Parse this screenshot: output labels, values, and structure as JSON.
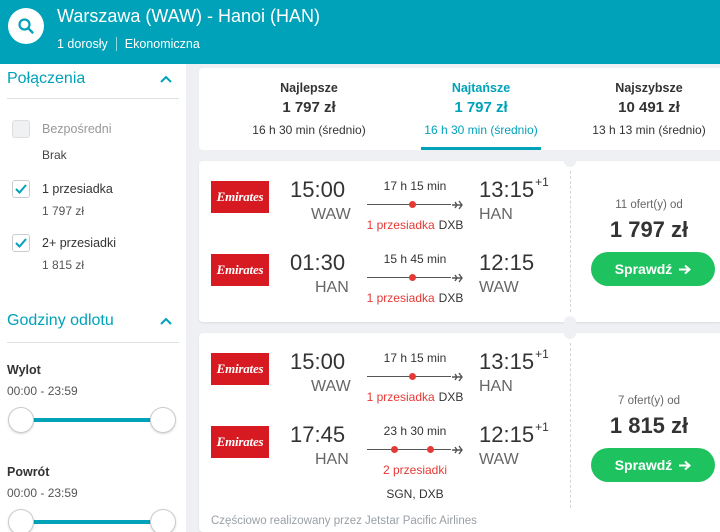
{
  "header": {
    "route": "Warszawa (WAW) - Hanoi (HAN)",
    "passengers": "1 dorosły",
    "cabin": "Ekonomiczna",
    "search_icon": "search-icon",
    "accent_color": "#00a2b9"
  },
  "sidebar": {
    "connections": {
      "title": "Połączenia",
      "options": [
        {
          "label": "Bezpośredni",
          "price": "Brak",
          "checked": false,
          "disabled": true
        },
        {
          "label": "1 przesiadka",
          "price": "1 797 zł",
          "checked": true,
          "disabled": false
        },
        {
          "label": "2+ przesiadki",
          "price": "1 815 zł",
          "checked": true,
          "disabled": false
        }
      ]
    },
    "departure_times": {
      "title": "Godziny odlotu",
      "outbound": {
        "label": "Wylot",
        "range": "00:00 - 23:59"
      },
      "return": {
        "label": "Powrót",
        "range": "00:00 - 23:59"
      }
    }
  },
  "sort_tabs": [
    {
      "label": "Najlepsze",
      "price": "1 797 zł",
      "duration": "16 h 30 min (średnio)",
      "active": false
    },
    {
      "label": "Najtańsze",
      "price": "1 797 zł",
      "duration": "16 h 30 min (średnio)",
      "active": true
    },
    {
      "label": "Najszybsze",
      "price": "10 491 zł",
      "duration": "13 h 13 min (średnio)",
      "active": false
    }
  ],
  "results": [
    {
      "legs": [
        {
          "airline": "Emirates",
          "dep_time": "15:00",
          "dep_code": "WAW",
          "duration": "17 h 15 min",
          "stops": "1 przesiadka",
          "via": "DXB",
          "arr_time": "13:15",
          "arr_day": "+1",
          "arr_code": "HAN"
        },
        {
          "airline": "Emirates",
          "dep_time": "01:30",
          "dep_code": "HAN",
          "duration": "15 h 45 min",
          "stops": "1 przesiadka",
          "via": "DXB",
          "arr_time": "12:15",
          "arr_day": "",
          "arr_code": "WAW"
        }
      ],
      "offers": "11 ofert(y) od",
      "price": "1 797 zł",
      "button": "Sprawdź"
    },
    {
      "legs": [
        {
          "airline": "Emirates",
          "dep_time": "15:00",
          "dep_code": "WAW",
          "duration": "17 h 15 min",
          "stops": "1 przesiadka",
          "via": "DXB",
          "arr_time": "13:15",
          "arr_day": "+1",
          "arr_code": "HAN"
        },
        {
          "airline": "Emirates",
          "dep_time": "17:45",
          "dep_code": "HAN",
          "duration": "23 h 30 min",
          "stops": "2 przesiadki",
          "via": "SGN, DXB",
          "arr_time": "12:15",
          "arr_day": "+1",
          "arr_code": "WAW"
        }
      ],
      "offers": "7 ofert(y) od",
      "price": "1 815 zł",
      "button": "Sprawdź",
      "operated_by": "Częściowo realizowany przez Jetstar Pacific Airlines"
    }
  ]
}
